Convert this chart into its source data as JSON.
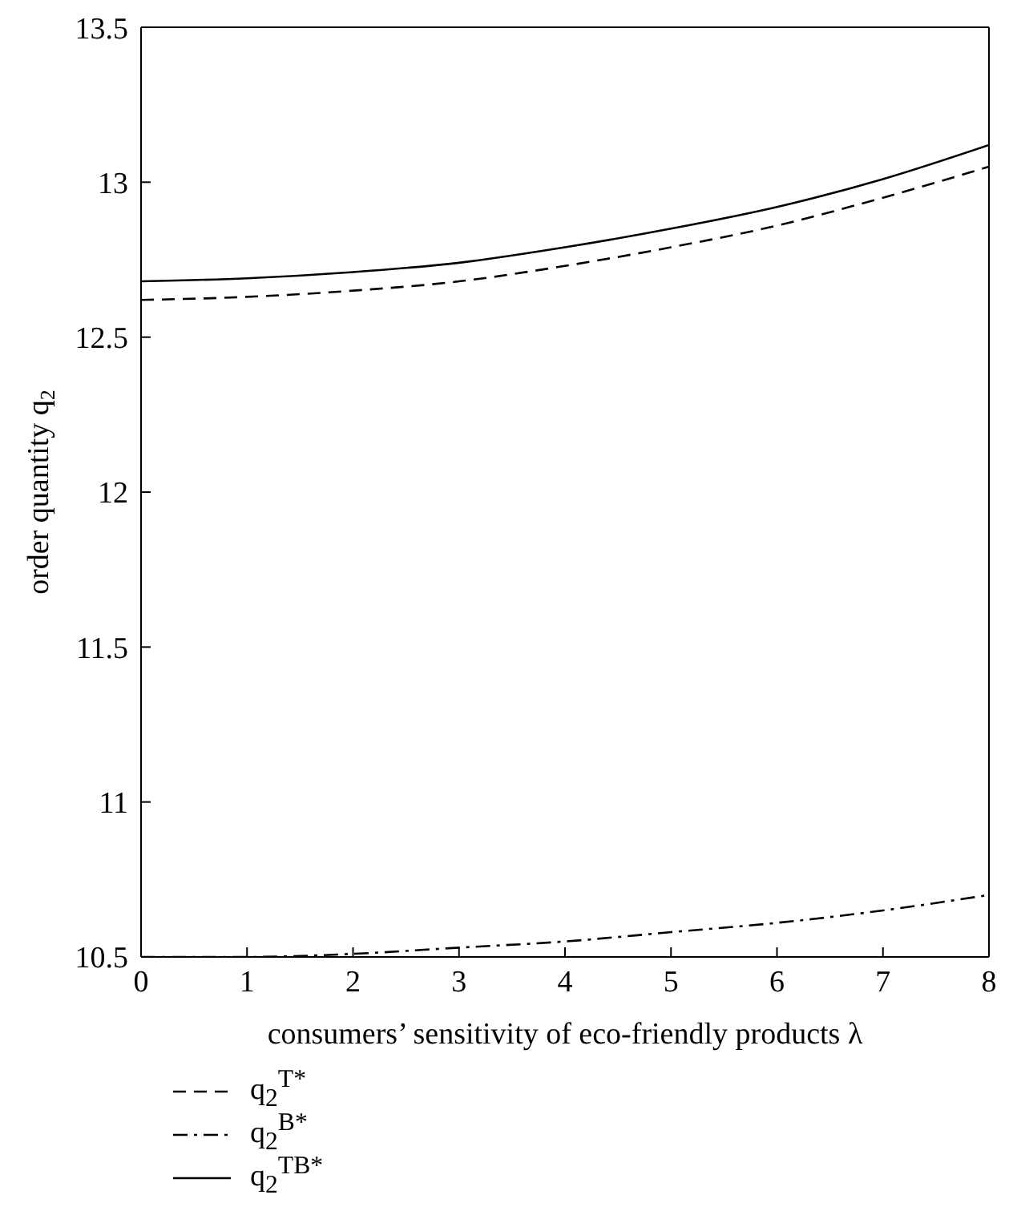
{
  "chart_data": {
    "type": "line",
    "xlabel": "consumers’ sensitivity of eco-friendly products λ",
    "ylabel": "order quantity q$_{2}$",
    "x": [
      0,
      1,
      2,
      3,
      4,
      5,
      6,
      7,
      8
    ],
    "series": [
      {
        "name": "q$_{2}$$^{T*}$",
        "color": "#000000",
        "line_style": "dashed",
        "values": [
          12.62,
          12.63,
          12.65,
          12.68,
          12.73,
          12.79,
          12.86,
          12.95,
          13.05
        ]
      },
      {
        "name": "q$_{2}$$^{B*}$",
        "color": "#000000",
        "line_style": "dashdot",
        "values": [
          10.5,
          10.5,
          10.51,
          10.53,
          10.55,
          10.58,
          10.61,
          10.65,
          10.7
        ]
      },
      {
        "name": "q$_{2}$$^{TB*}$",
        "color": "#000000",
        "line_style": "solid",
        "values": [
          12.68,
          12.69,
          12.71,
          12.74,
          12.79,
          12.85,
          12.92,
          13.01,
          13.12
        ]
      }
    ],
    "xlim": [
      0,
      8
    ],
    "xticks": [
      0,
      1,
      2,
      3,
      4,
      5,
      6,
      7,
      8
    ],
    "ylim": [
      10.5,
      13.5
    ],
    "yticks": [
      10.5,
      11,
      11.5,
      12,
      12.5,
      13,
      13.5
    ],
    "grid": false,
    "legend": "bottom left",
    "marker": "none"
  }
}
